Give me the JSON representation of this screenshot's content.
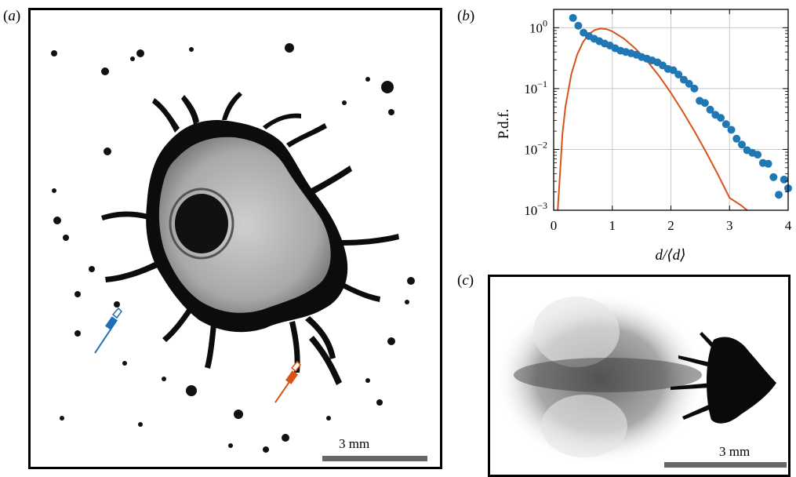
{
  "panels": {
    "a": {
      "label_open": "(",
      "label_letter": "a",
      "label_close": ")",
      "scalebar_label": "3 mm"
    },
    "b": {
      "label_open": "(",
      "label_letter": "b",
      "label_close": ")"
    },
    "c": {
      "label_open": "(",
      "label_letter": "c",
      "label_close": ")",
      "scalebar_label": "3 mm"
    }
  },
  "colors": {
    "data_points": "#1f77b4",
    "fit_curve": "#d95319",
    "blue_marker": "#1f6fb8",
    "orange_marker": "#d95319"
  },
  "chart_data": {
    "type": "scatter",
    "xlabel": "d/⟨d⟩",
    "ylabel": "P.d.f.",
    "xlim": [
      0,
      4
    ],
    "ylim": [
      0.001,
      2
    ],
    "yscale": "log",
    "grid": true,
    "x_ticks": [
      "0",
      "1",
      "2",
      "3",
      "4"
    ],
    "y_ticks": [
      {
        "base": "10",
        "exp": "−3",
        "value": 0.001
      },
      {
        "base": "10",
        "exp": "−2",
        "value": 0.01
      },
      {
        "base": "10",
        "exp": "−1",
        "value": 0.1
      },
      {
        "base": "10",
        "exp": "0",
        "value": 1
      }
    ],
    "series": [
      {
        "kind": "points",
        "x": [
          0.33,
          0.42,
          0.51,
          0.6,
          0.69,
          0.78,
          0.87,
          0.96,
          1.05,
          1.14,
          1.23,
          1.32,
          1.41,
          1.5,
          1.59,
          1.68,
          1.77,
          1.86,
          1.95,
          2.04,
          2.13,
          2.22,
          2.31,
          2.4,
          2.49,
          2.58,
          2.67,
          2.76,
          2.85,
          2.94,
          3.03,
          3.12,
          3.21,
          3.3,
          3.39,
          3.48,
          3.57,
          3.66,
          3.75,
          3.84,
          3.93,
          4.0
        ],
        "y": [
          1.45,
          1.08,
          0.83,
          0.73,
          0.66,
          0.6,
          0.55,
          0.51,
          0.46,
          0.42,
          0.4,
          0.38,
          0.36,
          0.33,
          0.31,
          0.29,
          0.27,
          0.24,
          0.21,
          0.2,
          0.17,
          0.14,
          0.12,
          0.1,
          0.063,
          0.058,
          0.045,
          0.037,
          0.033,
          0.026,
          0.021,
          0.015,
          0.012,
          0.0097,
          0.0088,
          0.0082,
          0.006,
          0.0058,
          0.0035,
          0.0018,
          0.0032,
          0.0023
        ]
      },
      {
        "kind": "curve",
        "x": [
          0.07,
          0.1,
          0.15,
          0.2,
          0.3,
          0.4,
          0.5,
          0.6,
          0.7,
          0.8,
          0.9,
          1.0,
          1.2,
          1.4,
          1.6,
          1.8,
          2.0,
          2.2,
          2.4,
          2.6,
          2.8,
          3.0,
          3.2,
          3.3
        ],
        "y": [
          0.001,
          0.003,
          0.018,
          0.05,
          0.17,
          0.36,
          0.58,
          0.78,
          0.92,
          0.97,
          0.95,
          0.87,
          0.66,
          0.45,
          0.28,
          0.16,
          0.085,
          0.042,
          0.02,
          0.009,
          0.0039,
          0.0016,
          0.0012,
          0.001
        ]
      }
    ]
  }
}
